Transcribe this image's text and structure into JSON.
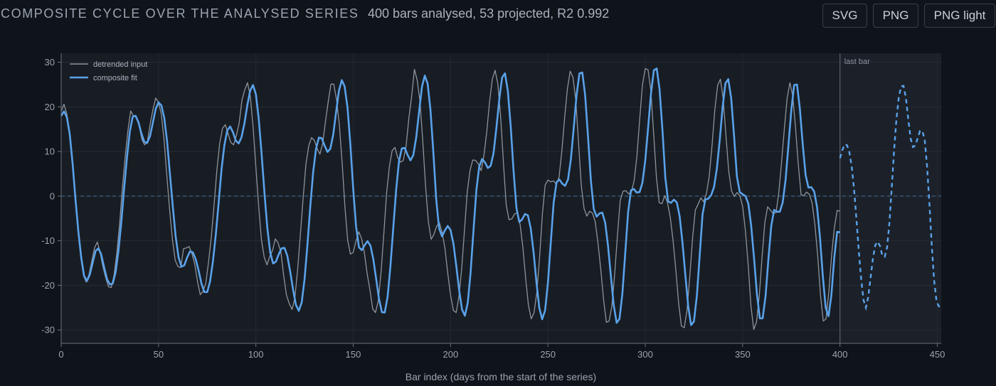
{
  "header": {
    "title": "COMPOSITE CYCLE OVER THE ANALYSED SERIES",
    "subtitle": "400 bars analysed, 53 projected, R2 0.992",
    "buttons": {
      "svg": "SVG",
      "png": "PNG",
      "png_light": "PNG light"
    }
  },
  "colors": {
    "background": "#0f131a",
    "plot_area": "#181d24",
    "projection_area": "#1c2129",
    "input_line": "#8e949b",
    "fit_line": "#5aa2ea",
    "zero_line": "#3f6f9a"
  },
  "chart_data": {
    "type": "line",
    "title": "",
    "xlabel": "Bar index (days from the start of the series)",
    "ylabel": "",
    "xlim": [
      0,
      452
    ],
    "ylim": [
      -33,
      32
    ],
    "x_ticks": [
      0,
      50,
      100,
      150,
      200,
      250,
      300,
      350,
      400,
      450
    ],
    "y_ticks": [
      30,
      20,
      10,
      0,
      -10,
      -20,
      -30
    ],
    "grid": true,
    "legend_position": "top-left",
    "legend": [
      "detrended input",
      "composite fit"
    ],
    "annotations": [
      {
        "x": 400,
        "label": "last bar"
      }
    ],
    "reference_line": {
      "y": 0,
      "style": "dashed"
    },
    "series": [
      {
        "name": "detrended input",
        "style": "solid",
        "x_start": 0,
        "x_step": 1,
        "values": [
          19.0,
          20.6,
          18.5,
          14.7,
          8.0,
          0.1,
          -7.3,
          -13.6,
          -17.7,
          -19.3,
          -17.6,
          -14.6,
          -11.6,
          -10.3,
          -12.6,
          -15.8,
          -18.3,
          -20.3,
          -20.5,
          -17.7,
          -12.8,
          -6.3,
          1.8,
          8.7,
          14.7,
          19.1,
          18.0,
          17.7,
          15.9,
          12.7,
          11.5,
          12.3,
          16.2,
          19.4,
          22.0,
          21.0,
          18.4,
          12.4,
          4.4,
          -3.2,
          -9.8,
          -14.4,
          -15.8,
          -16.0,
          -11.8,
          -11.6,
          -11.3,
          -12.9,
          -15.2,
          -19.1,
          -22.1,
          -21.3,
          -19.5,
          -14.7,
          -9.0,
          -1.8,
          5.9,
          11.8,
          15.2,
          16.0,
          14.0,
          12.0,
          11.5,
          13.6,
          16.4,
          21.5,
          23.8,
          25.4,
          22.3,
          15.4,
          6.4,
          -2.3,
          -9.8,
          -13.7,
          -15.4,
          -13.5,
          -12.2,
          -9.6,
          -10.5,
          -12.6,
          -17.9,
          -22.2,
          -24.1,
          -25.4,
          -22.9,
          -16.6,
          -8.6,
          -0.4,
          7.1,
          11.3,
          13.1,
          12.5,
          10.7,
          9.4,
          11.7,
          16.6,
          21.1,
          25.1,
          25.1,
          21.6,
          16.0,
          7.5,
          -2.3,
          -9.9,
          -13.0,
          -12.6,
          -10.1,
          -8.0,
          -9.5,
          -12.6,
          -17.4,
          -21.0,
          -25.3,
          -26.1,
          -23.5,
          -17.1,
          -8.5,
          0.6,
          6.6,
          10.2,
          10.9,
          8.6,
          7.6,
          8.0,
          11.2,
          17.4,
          22.3,
          28.4,
          26.0,
          21.2,
          12.5,
          2.2,
          -5.7,
          -9.7,
          -8.6,
          -6.7,
          -6.0,
          -8.2,
          -11.8,
          -17.3,
          -22.2,
          -25.6,
          -26.1,
          -22.5,
          -16.2,
          -7.6,
          1.0,
          5.8,
          8.1,
          8.0,
          7.2,
          5.7,
          9.2,
          14.4,
          21.1,
          26.2,
          28.2,
          25.1,
          17.8,
          7.6,
          -1.9,
          -5.3,
          -5.1,
          -4.0,
          -3.7,
          -6.4,
          -11.5,
          -18.5,
          -24.5,
          -27.5,
          -26.2,
          -21.7,
          -13.6,
          -4.1,
          2.5,
          3.6,
          3.2,
          3.4,
          2.7,
          4.2,
          10.0,
          17.4,
          24.0,
          28.0,
          26.6,
          21.6,
          12.0,
          2.3,
          -2.8,
          -4.5,
          -3.4,
          -3.8,
          -5.7,
          -10.6,
          -16.5,
          -23.2,
          -28.3,
          -28.0,
          -24.6,
          -17.5,
          -8.8,
          -1.0,
          1.1,
          1.2,
          0.5,
          0.9,
          3.5,
          9.0,
          17.3,
          25.0,
          28.6,
          28.3,
          23.7,
          14.2,
          4.2,
          -1.5,
          -1.7,
          0.1,
          -1.5,
          -4.8,
          -10.0,
          -16.6,
          -24.0,
          -29.1,
          -29.5,
          -25.6,
          -18.0,
          -9.4,
          -3.1,
          -1.8,
          -0.4,
          -1.3,
          0.6,
          4.4,
          11.2,
          19.4,
          24.8,
          26.2,
          21.9,
          13.6,
          5.6,
          1.2,
          -0.1,
          0.8,
          0.1,
          -2.3,
          -7.8,
          -15.5,
          -24.7,
          -29.9,
          -28.2,
          -22.3,
          -13.6,
          -5.9,
          -2.4,
          -3.2,
          -3.9,
          -3.7,
          0.8,
          7.6,
          15.1,
          21.9,
          25.4,
          22.5,
          15.6,
          7.3,
          0.3,
          0.1,
          0.9,
          0.4,
          -1.6,
          -6.5,
          -13.4,
          -22.2,
          -28.0,
          -27.5,
          -21.3,
          -13.1,
          -7.0,
          -3.2,
          -3.4
        ],
        "segment_count": 400
      },
      {
        "name": "composite fit",
        "style": "solid",
        "x_start": 0,
        "x_step": 1,
        "values": [
          18.0,
          19.0,
          17.7,
          13.8,
          7.2,
          -0.7,
          -7.9,
          -13.8,
          -17.9,
          -19.0,
          -17.6,
          -14.9,
          -12.3,
          -11.7,
          -13.1,
          -16.0,
          -18.6,
          -19.8,
          -19.6,
          -17.1,
          -12.3,
          -5.9,
          1.8,
          8.9,
          14.6,
          17.8,
          18.0,
          16.5,
          14.1,
          12.2,
          11.9,
          13.4,
          16.4,
          19.5,
          21.0,
          20.3,
          17.5,
          12.2,
          4.9,
          -2.5,
          -9.2,
          -13.7,
          -15.8,
          -15.5,
          -13.7,
          -12.4,
          -12.6,
          -14.2,
          -16.7,
          -19.6,
          -21.5,
          -21.5,
          -19.1,
          -14.6,
          -8.7,
          -1.4,
          6.0,
          11.4,
          14.7,
          15.6,
          14.3,
          12.4,
          11.8,
          13.2,
          16.3,
          20.3,
          23.6,
          24.9,
          22.8,
          17.3,
          9.5,
          0.8,
          -7.2,
          -12.6,
          -15.1,
          -14.7,
          -13.0,
          -11.7,
          -11.6,
          -13.4,
          -17.0,
          -21.0,
          -24.4,
          -25.7,
          -23.8,
          -18.6,
          -11.0,
          -2.4,
          5.4,
          10.6,
          13.1,
          13.0,
          11.3,
          9.9,
          10.6,
          13.7,
          18.8,
          23.6,
          26.0,
          24.6,
          19.8,
          11.5,
          1.6,
          -6.8,
          -11.5,
          -12.1,
          -11.0,
          -10.1,
          -11.1,
          -14.1,
          -18.5,
          -23.0,
          -26.0,
          -26.1,
          -22.6,
          -15.7,
          -6.9,
          1.5,
          7.9,
          10.7,
          10.8,
          9.2,
          8.0,
          9.2,
          13.1,
          18.9,
          24.5,
          27.0,
          25.2,
          19.1,
          9.6,
          -0.8,
          -7.2,
          -9.0,
          -7.7,
          -6.7,
          -7.6,
          -10.7,
          -15.7,
          -21.1,
          -25.4,
          -26.8,
          -23.9,
          -17.1,
          -7.8,
          1.3,
          6.6,
          8.3,
          7.6,
          6.3,
          6.8,
          9.6,
          15.2,
          21.7,
          26.6,
          27.5,
          23.6,
          15.6,
          5.6,
          -2.6,
          -5.8,
          -5.2,
          -4.0,
          -4.3,
          -7.2,
          -12.7,
          -19.4,
          -25.1,
          -27.6,
          -25.6,
          -19.4,
          -10.4,
          -1.5,
          3.1,
          3.7,
          2.8,
          2.3,
          3.7,
          8.2,
          15.2,
          22.6,
          27.5,
          27.7,
          22.6,
          13.4,
          3.4,
          -2.9,
          -4.6,
          -3.9,
          -3.7,
          -6.0,
          -11.2,
          -18.0,
          -24.5,
          -28.4,
          -27.5,
          -21.9,
          -12.9,
          -3.6,
          1.3,
          1.6,
          0.8,
          0.9,
          3.0,
          8.0,
          15.3,
          23.1,
          28.2,
          28.6,
          23.9,
          14.7,
          4.1,
          -1.2,
          -1.5,
          -0.8,
          -1.4,
          -4.5,
          -10.4,
          -17.8,
          -24.7,
          -28.9,
          -28.1,
          -22.4,
          -13.3,
          -4.1,
          -0.7,
          -0.6,
          0.2,
          2.0,
          6.1,
          12.6,
          19.9,
          25.3,
          26.2,
          21.9,
          13.5,
          4.4,
          0.9,
          0.4,
          0.0,
          -1.7,
          -6.7,
          -14.1,
          -22.0,
          -27.4,
          -27.4,
          -22.4,
          -14.1,
          -6.7,
          -3.1,
          -3.5,
          -3.5,
          -1.4,
          3.6,
          11.3,
          19.3,
          24.9,
          25.0,
          19.6,
          11.5,
          4.7,
          1.9,
          2.0,
          1.0,
          -2.5,
          -9.1,
          -17.8,
          -25.0,
          -26.9,
          -22.2,
          -13.9,
          -8.0,
          -8.1
        ],
        "segment_count": 400
      },
      {
        "name": "composite fit (projection)",
        "style": "dashed",
        "x_start": 400,
        "x_step": 1,
        "values": [
          8.5,
          10.3,
          11.6,
          11.4,
          9.8,
          6.6,
          1.5,
          -5.3,
          -12.4,
          -18.6,
          -23.3,
          -25.0,
          -22.6,
          -18.3,
          -14.0,
          -11.0,
          -10.2,
          -11.2,
          -13.4,
          -13.6,
          -11.5,
          -6.0,
          2.0,
          10.4,
          17.3,
          22.2,
          24.6,
          24.7,
          22.0,
          17.2,
          12.9,
          11.0,
          11.3,
          13.0,
          14.6,
          14.6,
          12.6,
          6.7,
          -1.9,
          -11.3,
          -19.0,
          -23.6,
          -24.7,
          -24.8
        ],
        "x_end": 452
      }
    ]
  }
}
